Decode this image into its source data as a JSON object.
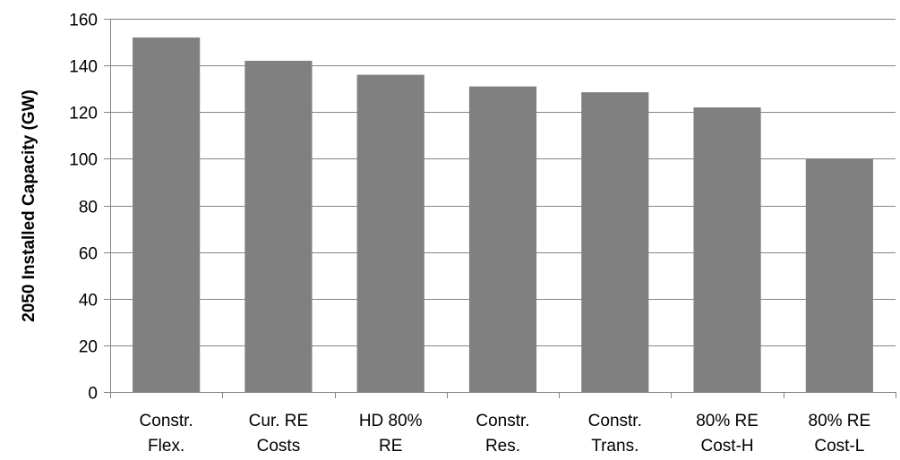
{
  "chart_data": {
    "type": "bar",
    "title": "",
    "xlabel": "",
    "ylabel": "2050 Installed Capacity (GW)",
    "ylim": [
      0,
      160
    ],
    "yticks": [
      0,
      20,
      40,
      60,
      80,
      100,
      120,
      140,
      160
    ],
    "grid": true,
    "legend": "none",
    "categories": [
      [
        "Constr.",
        "Flex."
      ],
      [
        "Cur. RE",
        "Costs"
      ],
      [
        "HD 80%",
        "RE"
      ],
      [
        "Constr.",
        "Res."
      ],
      [
        "Constr.",
        "Trans."
      ],
      [
        "80% RE",
        "Cost-H"
      ],
      [
        "80% RE",
        "Cost-L"
      ]
    ],
    "values": [
      152,
      142,
      136,
      131,
      128.5,
      122,
      100
    ],
    "colors": {
      "bar": "#808080",
      "grid": "#858585",
      "axis": "#858585"
    }
  }
}
